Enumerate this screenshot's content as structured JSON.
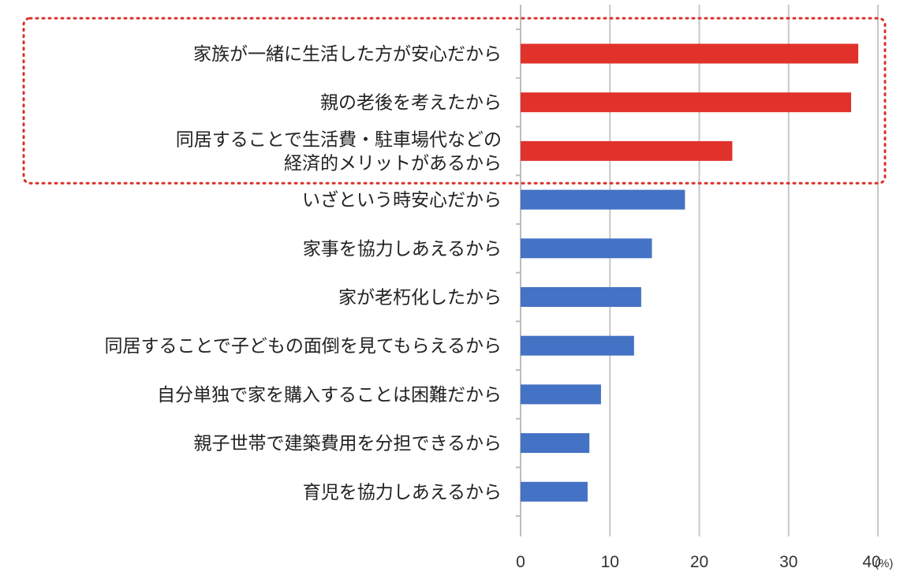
{
  "chart_data": {
    "type": "bar",
    "orientation": "horizontal",
    "categories": [
      "家族が一緒に生活した方が安心だから",
      "親の老後を考えたから",
      "同居することで生活費・駐車場代などの\n経済的メリットがあるから",
      "いざという時安心だから",
      "家事を協力しあえるから",
      "家が老朽化したから",
      "同居することで子どもの面倒を見てもらえるから",
      "自分単独で家を購入することは困難だから",
      "親子世帯で建築費用を分担できるから",
      "育児を協力しあえるから"
    ],
    "values": [
      37.8,
      37.0,
      23.7,
      18.4,
      14.7,
      13.5,
      12.7,
      9.0,
      7.7,
      7.5
    ],
    "highlighted": [
      true,
      true,
      true,
      false,
      false,
      false,
      false,
      false,
      false,
      false
    ],
    "xlim": [
      0,
      40
    ],
    "xticks": [
      "0",
      "10",
      "20",
      "30",
      "40"
    ],
    "unit": "(%)",
    "grid": true,
    "colors": {
      "highlight": "#e0322a",
      "normal": "#4472c4",
      "grid": "#c8c8c8",
      "dotted_frame": "#d9312c"
    }
  }
}
